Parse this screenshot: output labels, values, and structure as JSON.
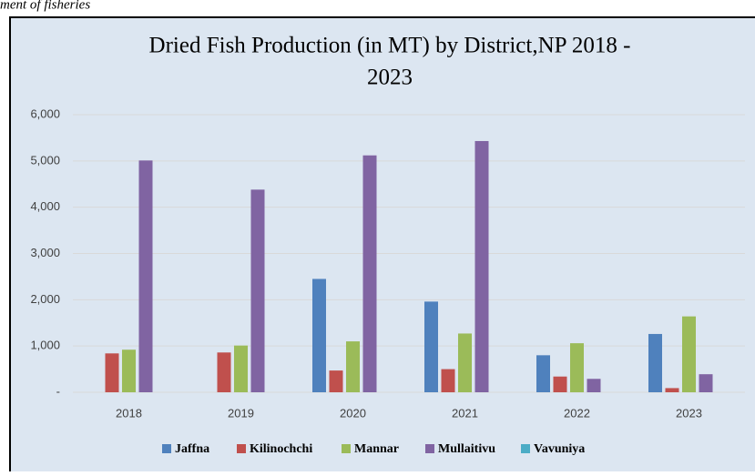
{
  "header": {
    "caption": "ment of fisheries"
  },
  "chart_data": {
    "type": "bar",
    "title": [
      "Dried Fish Production (in MT) by District,NP  2018 -",
      "2023"
    ],
    "categories": [
      "2018",
      "2019",
      "2020",
      "2021",
      "2022",
      "2023"
    ],
    "series": [
      {
        "name": "Jaffna",
        "color": "#4f81bd",
        "values": [
          0,
          0,
          2450,
          1960,
          800,
          1260
        ]
      },
      {
        "name": "Kilinochchi",
        "color": "#c0504d",
        "values": [
          840,
          860,
          470,
          500,
          340,
          90
        ]
      },
      {
        "name": "Mannar",
        "color": "#9bbb59",
        "values": [
          920,
          1010,
          1100,
          1270,
          1060,
          1640
        ]
      },
      {
        "name": "Mullaitivu",
        "color": "#8064a2",
        "values": [
          5010,
          4380,
          5120,
          5430,
          290,
          390
        ]
      },
      {
        "name": "Vavuniya",
        "color": "#4bacc6",
        "values": [
          0,
          0,
          0,
          0,
          0,
          0
        ]
      }
    ],
    "ylim": [
      0,
      6000
    ],
    "yticks": [
      {
        "value": 0,
        "label": "-"
      },
      {
        "value": 1000,
        "label": "1,000"
      },
      {
        "value": 2000,
        "label": "2,000"
      },
      {
        "value": 3000,
        "label": "3,000"
      },
      {
        "value": 4000,
        "label": "4,000"
      },
      {
        "value": 5000,
        "label": "5,000"
      },
      {
        "value": 6000,
        "label": "6,000"
      }
    ],
    "grid": true,
    "legend": "bottom"
  }
}
